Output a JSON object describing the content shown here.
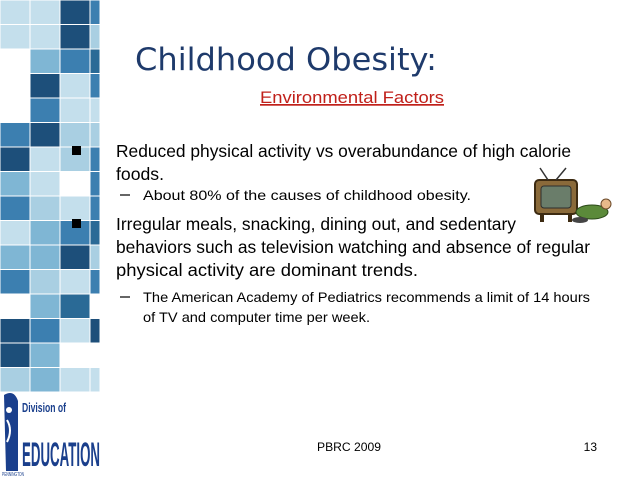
{
  "title": "Childhood Obesity:",
  "subtitle": "Environmental Factors",
  "bullets": [
    {
      "lines": [
        "Reduced physical activity vs overabundance of high calorie",
        "foods."
      ],
      "sub": [
        {
          "lines": [
            "About 80% of the causes of childhood obesity."
          ]
        }
      ]
    },
    {
      "lines": [
        "Irregular meals, snacking, dining out, and sedentary",
        "behaviors such as television watching and absence of regular",
        "physical activity are dominant trends."
      ],
      "sub": [
        {
          "lines": [
            "The American Academy of Pediatrics recommends a limit of 14 hours",
            "of TV and computer time per week."
          ]
        }
      ]
    }
  ],
  "logo": {
    "line1": "Division of",
    "line2": "EDUCATION",
    "line3": "PENNINGTON"
  },
  "footer": {
    "center": "PBRC 2009",
    "page": "13"
  }
}
